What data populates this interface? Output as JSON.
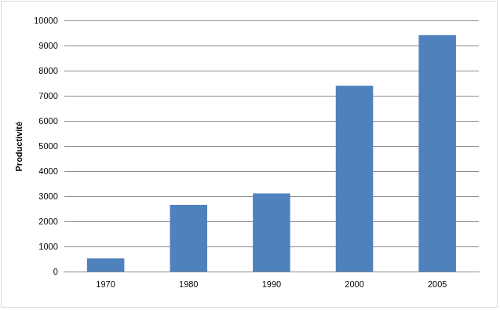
{
  "chart_data": {
    "type": "bar",
    "ylabel": "Productivité",
    "categories": [
      "1970",
      "1980",
      "1990",
      "2000",
      "2005"
    ],
    "values": [
      550,
      2680,
      3130,
      7420,
      9430
    ],
    "color": "#4f81bd",
    "ylim": [
      0,
      10000
    ],
    "yticks": [
      0,
      1000,
      2000,
      3000,
      4000,
      5000,
      6000,
      7000,
      8000,
      9000,
      10000
    ],
    "grid": true
  }
}
